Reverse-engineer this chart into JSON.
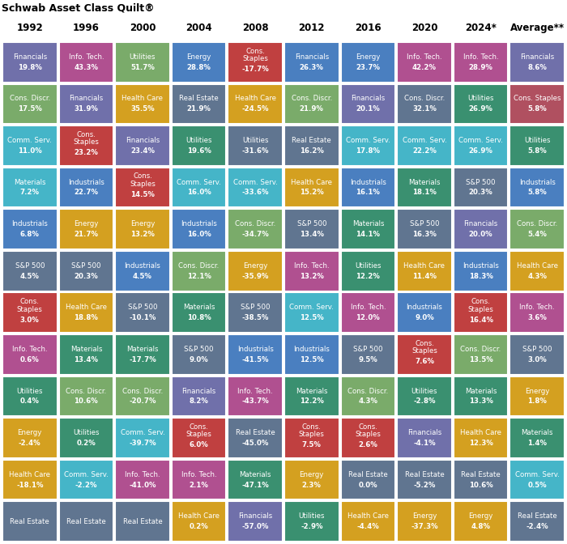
{
  "title": "Schwab Asset Class Quilt®",
  "columns": [
    "1992",
    "1996",
    "2000",
    "2004",
    "2008",
    "2012",
    "2016",
    "2020",
    "2024*",
    "Average**"
  ],
  "rows": [
    [
      {
        "label": "Financials",
        "value": "19.8%",
        "color": "#7070aa"
      },
      {
        "label": "Info. Tech.",
        "value": "43.3%",
        "color": "#b05090"
      },
      {
        "label": "Utilities",
        "value": "51.7%",
        "color": "#7aab6a"
      },
      {
        "label": "Energy",
        "value": "28.8%",
        "color": "#4a7fc0"
      },
      {
        "label": "Cons.\nStaples",
        "value": "-17.7%",
        "color": "#c04040"
      },
      {
        "label": "Financials",
        "value": "26.3%",
        "color": "#4a7fc0"
      },
      {
        "label": "Energy",
        "value": "23.7%",
        "color": "#4a7fc0"
      },
      {
        "label": "Info. Tech.",
        "value": "42.2%",
        "color": "#b05090"
      },
      {
        "label": "Info. Tech.",
        "value": "28.9%",
        "color": "#b05090"
      },
      {
        "label": "Financials",
        "value": "8.6%",
        "color": "#7070aa"
      }
    ],
    [
      {
        "label": "Cons. Discr.",
        "value": "17.5%",
        "color": "#7aab6a"
      },
      {
        "label": "Financials",
        "value": "31.9%",
        "color": "#7070aa"
      },
      {
        "label": "Health Care",
        "value": "35.5%",
        "color": "#d4a020"
      },
      {
        "label": "Real Estate",
        "value": "21.9%",
        "color": "#607590"
      },
      {
        "label": "Health Care",
        "value": "-24.5%",
        "color": "#d4a020"
      },
      {
        "label": "Cons. Discr.",
        "value": "21.9%",
        "color": "#7aab6a"
      },
      {
        "label": "Financials",
        "value": "20.1%",
        "color": "#7070aa"
      },
      {
        "label": "Cons. Discr.",
        "value": "32.1%",
        "color": "#607590"
      },
      {
        "label": "Utilities",
        "value": "26.9%",
        "color": "#3a9070"
      },
      {
        "label": "Cons. Staples",
        "value": "5.8%",
        "color": "#b05060"
      }
    ],
    [
      {
        "label": "Comm. Serv.",
        "value": "11.0%",
        "color": "#45b5c8"
      },
      {
        "label": "Cons.\nStaples",
        "value": "23.2%",
        "color": "#c04040"
      },
      {
        "label": "Financials",
        "value": "23.4%",
        "color": "#7070aa"
      },
      {
        "label": "Utilities",
        "value": "19.6%",
        "color": "#3a9070"
      },
      {
        "label": "Utilities",
        "value": "-31.6%",
        "color": "#607590"
      },
      {
        "label": "Real Estate",
        "value": "16.2%",
        "color": "#607590"
      },
      {
        "label": "Comm. Serv.",
        "value": "17.8%",
        "color": "#45b5c8"
      },
      {
        "label": "Comm. Serv.",
        "value": "22.2%",
        "color": "#45b5c8"
      },
      {
        "label": "Comm. Serv.",
        "value": "26.9%",
        "color": "#45b5c8"
      },
      {
        "label": "Utilities",
        "value": "5.8%",
        "color": "#3a9070"
      }
    ],
    [
      {
        "label": "Materials",
        "value": "7.2%",
        "color": "#45b5c8"
      },
      {
        "label": "Industrials",
        "value": "22.7%",
        "color": "#4a7fc0"
      },
      {
        "label": "Cons.\nStaples",
        "value": "14.5%",
        "color": "#c04040"
      },
      {
        "label": "Comm. Serv.",
        "value": "16.0%",
        "color": "#45b5c8"
      },
      {
        "label": "Comm. Serv.",
        "value": "-33.6%",
        "color": "#45b5c8"
      },
      {
        "label": "Health Care",
        "value": "15.2%",
        "color": "#d4a020"
      },
      {
        "label": "Industrials",
        "value": "16.1%",
        "color": "#4a7fc0"
      },
      {
        "label": "Materials",
        "value": "18.1%",
        "color": "#3a9070"
      },
      {
        "label": "S&P 500",
        "value": "20.3%",
        "color": "#607590"
      },
      {
        "label": "Industrials",
        "value": "5.8%",
        "color": "#4a7fc0"
      }
    ],
    [
      {
        "label": "Industrials",
        "value": "6.8%",
        "color": "#4a7fc0"
      },
      {
        "label": "Energy",
        "value": "21.7%",
        "color": "#d4a020"
      },
      {
        "label": "Energy",
        "value": "13.2%",
        "color": "#d4a020"
      },
      {
        "label": "Industrials",
        "value": "16.0%",
        "color": "#4a7fc0"
      },
      {
        "label": "Cons. Discr.",
        "value": "-34.7%",
        "color": "#7aab6a"
      },
      {
        "label": "S&P 500",
        "value": "13.4%",
        "color": "#607590"
      },
      {
        "label": "Materials",
        "value": "14.1%",
        "color": "#3a9070"
      },
      {
        "label": "S&P 500",
        "value": "16.3%",
        "color": "#607590"
      },
      {
        "label": "Financials",
        "value": "20.0%",
        "color": "#7070aa"
      },
      {
        "label": "Cons. Discr.",
        "value": "5.4%",
        "color": "#7aab6a"
      }
    ],
    [
      {
        "label": "S&P 500",
        "value": "4.5%",
        "color": "#607590"
      },
      {
        "label": "S&P 500",
        "value": "20.3%",
        "color": "#607590"
      },
      {
        "label": "Industrials",
        "value": "4.5%",
        "color": "#4a7fc0"
      },
      {
        "label": "Cons. Discr.",
        "value": "12.1%",
        "color": "#7aab6a"
      },
      {
        "label": "Energy",
        "value": "-35.9%",
        "color": "#d4a020"
      },
      {
        "label": "Info. Tech.",
        "value": "13.2%",
        "color": "#b05090"
      },
      {
        "label": "Utilities",
        "value": "12.2%",
        "color": "#3a9070"
      },
      {
        "label": "Health Care",
        "value": "11.4%",
        "color": "#d4a020"
      },
      {
        "label": "Industrials",
        "value": "18.3%",
        "color": "#4a7fc0"
      },
      {
        "label": "Health Care",
        "value": "4.3%",
        "color": "#d4a020"
      }
    ],
    [
      {
        "label": "Cons.\nStaples",
        "value": "3.0%",
        "color": "#c04040"
      },
      {
        "label": "Health Care",
        "value": "18.8%",
        "color": "#d4a020"
      },
      {
        "label": "S&P 500",
        "value": "-10.1%",
        "color": "#607590"
      },
      {
        "label": "Materials",
        "value": "10.8%",
        "color": "#3a9070"
      },
      {
        "label": "S&P 500",
        "value": "-38.5%",
        "color": "#607590"
      },
      {
        "label": "Comm. Serv.",
        "value": "12.5%",
        "color": "#45b5c8"
      },
      {
        "label": "Info. Tech.",
        "value": "12.0%",
        "color": "#b05090"
      },
      {
        "label": "Industrials",
        "value": "9.0%",
        "color": "#4a7fc0"
      },
      {
        "label": "Cons.\nStaples",
        "value": "16.4%",
        "color": "#c04040"
      },
      {
        "label": "Info. Tech.",
        "value": "3.6%",
        "color": "#b05090"
      }
    ],
    [
      {
        "label": "Info. Tech.",
        "value": "0.6%",
        "color": "#b05090"
      },
      {
        "label": "Materials",
        "value": "13.4%",
        "color": "#3a9070"
      },
      {
        "label": "Materials",
        "value": "-17.7%",
        "color": "#3a9070"
      },
      {
        "label": "S&P 500",
        "value": "9.0%",
        "color": "#607590"
      },
      {
        "label": "Industrials",
        "value": "-41.5%",
        "color": "#4a7fc0"
      },
      {
        "label": "Industrials",
        "value": "12.5%",
        "color": "#4a7fc0"
      },
      {
        "label": "S&P 500",
        "value": "9.5%",
        "color": "#607590"
      },
      {
        "label": "Cons.\nStaples",
        "value": "7.6%",
        "color": "#c04040"
      },
      {
        "label": "Cons. Discr.",
        "value": "13.5%",
        "color": "#7aab6a"
      },
      {
        "label": "S&P 500",
        "value": "3.0%",
        "color": "#607590"
      }
    ],
    [
      {
        "label": "Utilities",
        "value": "0.4%",
        "color": "#3a9070"
      },
      {
        "label": "Cons. Discr.",
        "value": "10.6%",
        "color": "#7aab6a"
      },
      {
        "label": "Cons. Discr.",
        "value": "-20.7%",
        "color": "#7aab6a"
      },
      {
        "label": "Financials",
        "value": "8.2%",
        "color": "#7070aa"
      },
      {
        "label": "Info. Tech.",
        "value": "-43.7%",
        "color": "#b05090"
      },
      {
        "label": "Materials",
        "value": "12.2%",
        "color": "#3a9070"
      },
      {
        "label": "Cons. Discr.",
        "value": "4.3%",
        "color": "#7aab6a"
      },
      {
        "label": "Utilities",
        "value": "-2.8%",
        "color": "#3a9070"
      },
      {
        "label": "Materials",
        "value": "13.3%",
        "color": "#3a9070"
      },
      {
        "label": "Energy",
        "value": "1.8%",
        "color": "#d4a020"
      }
    ],
    [
      {
        "label": "Energy",
        "value": "-2.4%",
        "color": "#d4a020"
      },
      {
        "label": "Utilities",
        "value": "0.2%",
        "color": "#3a9070"
      },
      {
        "label": "Comm. Serv.",
        "value": "-39.7%",
        "color": "#45b5c8"
      },
      {
        "label": "Cons.\nStaples",
        "value": "6.0%",
        "color": "#c04040"
      },
      {
        "label": "Real Estate",
        "value": "-45.0%",
        "color": "#607590"
      },
      {
        "label": "Cons.\nStaples",
        "value": "7.5%",
        "color": "#c04040"
      },
      {
        "label": "Cons.\nStaples",
        "value": "2.6%",
        "color": "#c04040"
      },
      {
        "label": "Financials",
        "value": "-4.1%",
        "color": "#7070aa"
      },
      {
        "label": "Health Care",
        "value": "12.3%",
        "color": "#d4a020"
      },
      {
        "label": "Materials",
        "value": "1.4%",
        "color": "#3a9070"
      }
    ],
    [
      {
        "label": "Health Care",
        "value": "-18.1%",
        "color": "#d4a020"
      },
      {
        "label": "Comm. Serv.",
        "value": "-2.2%",
        "color": "#45b5c8"
      },
      {
        "label": "Info. Tech.",
        "value": "-41.0%",
        "color": "#b05090"
      },
      {
        "label": "Info. Tech.",
        "value": "2.1%",
        "color": "#b05090"
      },
      {
        "label": "Materials",
        "value": "-47.1%",
        "color": "#3a9070"
      },
      {
        "label": "Energy",
        "value": "2.3%",
        "color": "#d4a020"
      },
      {
        "label": "Real Estate",
        "value": "0.0%",
        "color": "#607590"
      },
      {
        "label": "Real Estate",
        "value": "-5.2%",
        "color": "#607590"
      },
      {
        "label": "Real Estate",
        "value": "10.6%",
        "color": "#607590"
      },
      {
        "label": "Comm. Serv.",
        "value": "0.5%",
        "color": "#45b5c8"
      }
    ],
    [
      {
        "label": "Real Estate",
        "value": "",
        "color": "#607590"
      },
      {
        "label": "Real Estate",
        "value": "",
        "color": "#607590"
      },
      {
        "label": "Real Estate",
        "value": "",
        "color": "#607590"
      },
      {
        "label": "Health Care",
        "value": "0.2%",
        "color": "#d4a020"
      },
      {
        "label": "Financials",
        "value": "-57.0%",
        "color": "#7070aa"
      },
      {
        "label": "Utilities",
        "value": "-2.9%",
        "color": "#3a9070"
      },
      {
        "label": "Health Care",
        "value": "-4.4%",
        "color": "#d4a020"
      },
      {
        "label": "Energy",
        "value": "-37.3%",
        "color": "#d4a020"
      },
      {
        "label": "Energy",
        "value": "4.8%",
        "color": "#d4a020"
      },
      {
        "label": "Real Estate",
        "value": "-2.4%",
        "color": "#607590"
      }
    ]
  ],
  "bg_color": "#f0f0f0",
  "header_bg": "#ffffff",
  "title_fontsize": 9,
  "col_fontsize": 8.5,
  "cell_label_fontsize": 6.2,
  "cell_value_fontsize": 6.2
}
